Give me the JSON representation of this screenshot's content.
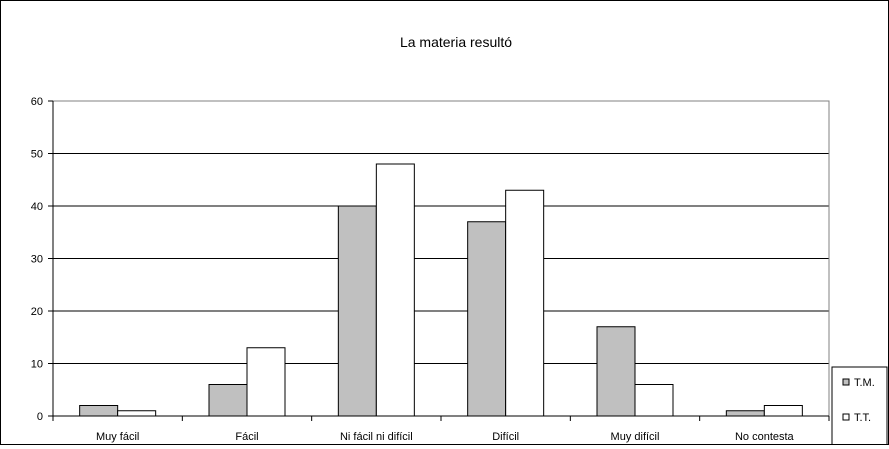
{
  "chart_data": {
    "type": "bar",
    "title": "La materia resultó",
    "xlabel": "",
    "ylabel": "",
    "categories": [
      "Muy fácil",
      "Fácil",
      "Ni fácil ni difícil",
      "Difícil",
      "Muy difícil",
      "No contesta"
    ],
    "series": [
      {
        "name": "T.M.",
        "values": [
          2,
          6,
          40,
          37,
          17,
          1
        ],
        "color": "#c0c0c0"
      },
      {
        "name": "T.T.",
        "values": [
          1,
          13,
          48,
          43,
          6,
          2
        ],
        "color": "#ffffff"
      }
    ],
    "ylim": [
      0,
      60
    ],
    "yticks": [
      0,
      10,
      20,
      30,
      40,
      50,
      60
    ],
    "grid": "horizontal",
    "legend_position": "bottom-right",
    "colors": {
      "plot_border": "#808080",
      "bar_stroke": "#000000",
      "gridline": "#000000"
    }
  }
}
